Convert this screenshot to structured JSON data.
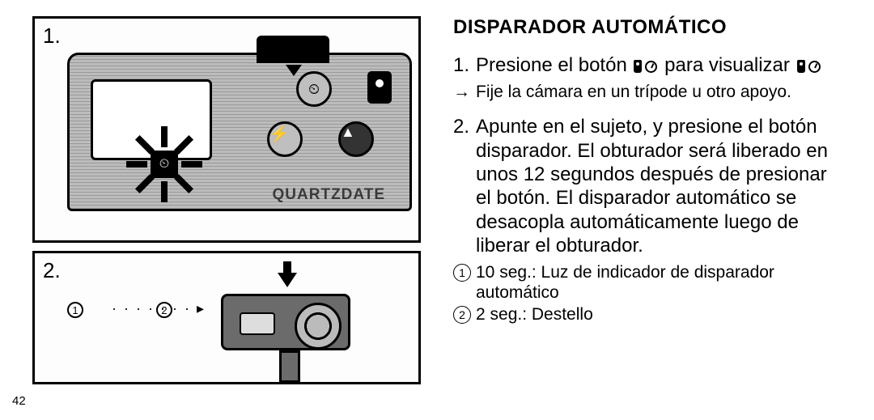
{
  "pageNumber": "42",
  "title": "DISPARADOR AUTOMÁTICO",
  "fig1": {
    "number": "1.",
    "brand": "QUARTZDATE"
  },
  "fig2": {
    "number": "2.",
    "marker1": "1",
    "marker2": "2",
    "dashes": "· · · · · · · ▸"
  },
  "step1": {
    "num": "1.",
    "text_a": "Presione el botón ",
    "text_b": " para visualizar "
  },
  "sub1": {
    "arrow": "→",
    "text": "Fije la cámara en un trípode u otro apoyo."
  },
  "step2": {
    "num": "2.",
    "text": "Apunte en el sujeto, y presione el botón disparador. El obturador será liberado en unos 12 segundos después de presionar el botón. El disparador automático se desacopla automáticamente luego de liberar el obturador."
  },
  "note1": {
    "marker": "1",
    "text": "10 seg.: Luz de indicador de disparador automático"
  },
  "note2": {
    "marker": "2",
    "text": "2 seg.: Destello"
  },
  "symbols": {
    "flash": "⚡",
    "mountain": "▲",
    "remote_timer": "⏱"
  }
}
